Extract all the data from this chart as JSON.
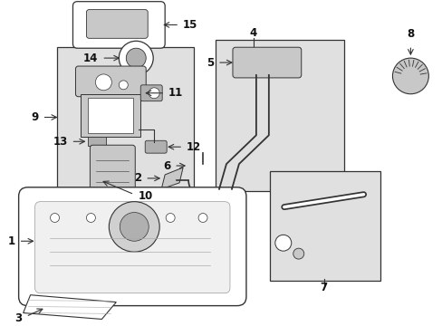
{
  "bg": "#ffffff",
  "box_bg": "#e0e0e0",
  "lc": "#333333",
  "tc": "#111111",
  "white": "#ffffff",
  "light_gray": "#c8c8c8",
  "mid_gray": "#b0b0b0",
  "dark_gray": "#999999",
  "fig_w": 4.89,
  "fig_h": 3.6,
  "dpi": 100
}
